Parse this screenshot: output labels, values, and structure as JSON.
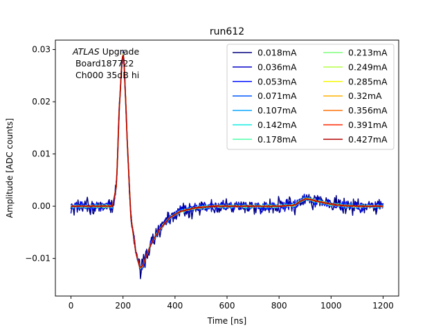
{
  "chart_data": {
    "type": "line",
    "title": "run612",
    "xlabel": "Time [ns]",
    "ylabel": "Amplitude [ADC counts]",
    "xlim": [
      -60,
      1260
    ],
    "ylim": [
      -0.0172,
      0.0318
    ],
    "xticks": [
      0,
      200,
      400,
      600,
      800,
      1000,
      1200
    ],
    "xtick_labels": [
      "0",
      "200",
      "400",
      "600",
      "800",
      "1000",
      "1200"
    ],
    "yticks": [
      -0.01,
      0.0,
      0.01,
      0.02,
      0.03
    ],
    "ytick_labels": [
      "−0.01",
      "0.00",
      "0.01",
      "0.02",
      "0.03"
    ],
    "grid": false,
    "legend_placement": "upper right, 2 columns",
    "annotation": {
      "experiment": "ATLAS",
      "experiment_suffix": " Upgrade",
      "line2": " Board187722",
      "line3": " Ch000 35dB hi"
    },
    "pulse_shape": {
      "x": [
        0,
        160,
        175,
        185,
        195,
        200,
        205,
        215,
        230,
        250,
        265,
        275,
        290,
        310,
        340,
        380,
        420,
        480,
        550,
        650,
        800,
        860,
        880,
        900,
        920,
        950,
        1000,
        1050,
        1100,
        1200
      ],
      "y": [
        0.0,
        0.0,
        0.004,
        0.018,
        0.027,
        0.0295,
        0.027,
        0.014,
        -0.002,
        -0.009,
        -0.0118,
        -0.0115,
        -0.0095,
        -0.007,
        -0.0045,
        -0.0022,
        -0.001,
        -0.0003,
        0.0,
        0.0,
        0.0,
        0.0002,
        0.0009,
        0.0014,
        0.0013,
        0.0009,
        0.0004,
        0.0001,
        0.0,
        0.0
      ]
    },
    "series": [
      {
        "name": "0.018mA",
        "color": "#00007f",
        "noise": 0.0012
      },
      {
        "name": "0.036mA",
        "color": "#0000c8",
        "noise": 0.0009
      },
      {
        "name": "0.053mA",
        "color": "#0010ff",
        "noise": 0.0006
      },
      {
        "name": "0.071mA",
        "color": "#0058ff",
        "noise": 0.0004
      },
      {
        "name": "0.107mA",
        "color": "#00a4ff",
        "noise": 0.0003
      },
      {
        "name": "0.142mA",
        "color": "#12eee4",
        "noise": 0.0002
      },
      {
        "name": "0.178mA",
        "color": "#4dffaa",
        "noise": 0.0002
      },
      {
        "name": "0.213mA",
        "color": "#7dff7a",
        "noise": 0.00015
      },
      {
        "name": "0.249mA",
        "color": "#b4ff43",
        "noise": 0.00015
      },
      {
        "name": "0.285mA",
        "color": "#f4f802",
        "noise": 0.0001
      },
      {
        "name": "0.32mA",
        "color": "#ffb100",
        "noise": 0.0001
      },
      {
        "name": "0.356mA",
        "color": "#ff6c00",
        "noise": 0.0001
      },
      {
        "name": "0.391mA",
        "color": "#ff2900",
        "noise": 0.0001
      },
      {
        "name": "0.427mA",
        "color": "#b20000",
        "noise": 0.0001
      }
    ]
  }
}
